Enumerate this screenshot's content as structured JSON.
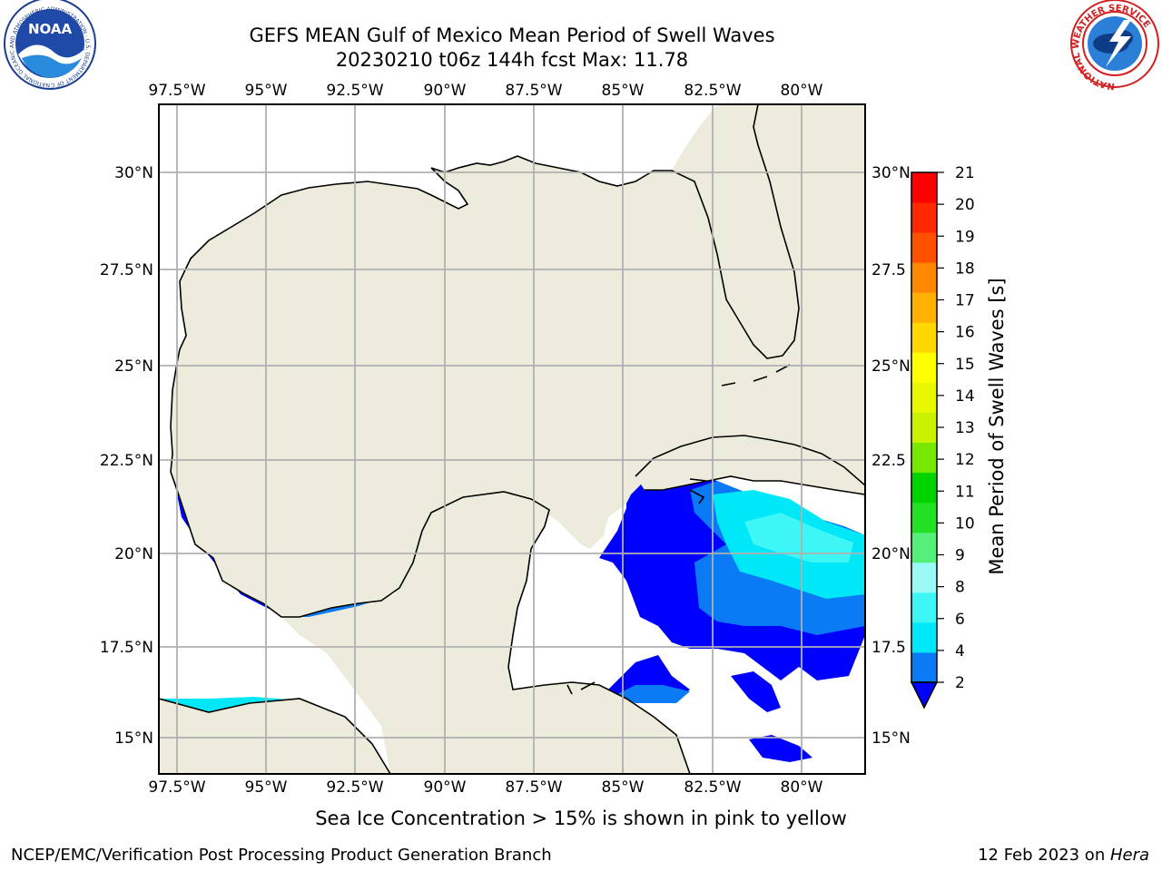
{
  "header": {
    "title_line1": "GEFS MEAN Gulf of Mexico Mean Period of Swell Waves",
    "title_line2": "20230210 t06z 144h fcst   Max: 11.78"
  },
  "logos": {
    "left_text": "NOAA",
    "left_ring_text": "NATIONAL OCEANIC AND ATMOSPHERIC ADMINISTRATION · U.S. DEPARTMENT OF COMMERCE",
    "right_ring_text": "NATIONAL WEATHER SERVICE"
  },
  "map": {
    "lon_labels": [
      "97.5°W",
      "95°W",
      "92.5°W",
      "90°W",
      "87.5°W",
      "85°W",
      "82.5°W",
      "80°W"
    ],
    "lat_labels_left": [
      "30°N",
      "27.5°N",
      "25°N",
      "22.5°N",
      "20°N",
      "17.5°N",
      "15°N"
    ],
    "lat_labels_right": [
      "30°N",
      "27.5",
      "25°N",
      "22.5",
      "20°N",
      "17.5",
      "15°N"
    ],
    "colors": {
      "land": "#edecdc",
      "no_swell": "#ffffff",
      "swell_0_2": "#0000ff",
      "swell_2_4": "#0a7af5",
      "swell_4_6": "#00e8f8",
      "swell_6_8": "#3ff6f6",
      "swell_8_9": "#90f8f8",
      "green": "#22e022",
      "grid": "#b0b0b0"
    }
  },
  "colorbar": {
    "title": "Mean Period of Swell Waves [s]",
    "tick_labels": [
      "2",
      "4",
      "6",
      "8",
      "9",
      "10",
      "11",
      "12",
      "13",
      "14",
      "15",
      "16",
      "17",
      "18",
      "19",
      "20",
      "21"
    ],
    "bin_colors": [
      "#0a7af5",
      "#00e8f8",
      "#3ff6f6",
      "#9afaf6",
      "#55f07a",
      "#22e022",
      "#00d400",
      "#77e800",
      "#c8f200",
      "#e8f800",
      "#ffff00",
      "#ffd800",
      "#ffb000",
      "#ff8800",
      "#ff5000",
      "#ff2800",
      "#ff0000"
    ],
    "under_color": "#0000ff"
  },
  "footer": {
    "sea_ice_note": "Sea Ice Concentration > 15% is shown in pink to yellow",
    "credit_left": "NCEP/EMC/Verification Post Processing Product Generation Branch",
    "credit_right_date": "12 Feb 2023 on ",
    "credit_right_machine": "Hera"
  }
}
